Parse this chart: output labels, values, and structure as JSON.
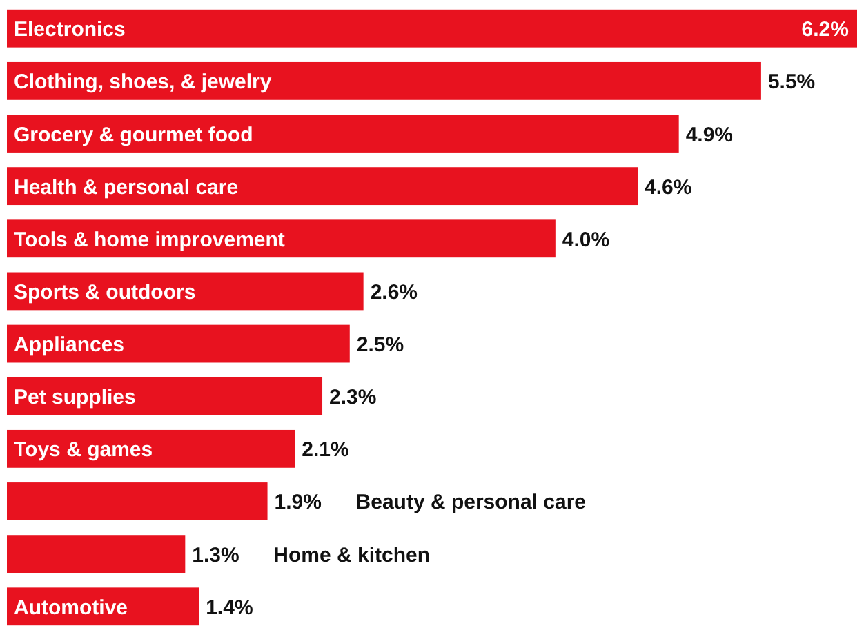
{
  "chart_data": {
    "type": "bar",
    "orientation": "horizontal",
    "categories": [
      "Electronics",
      "Clothing, shoes, & jewelry",
      "Grocery & gourmet food",
      "Health & personal care",
      "Tools & home improvement",
      "Sports & outdoors",
      "Appliances",
      "Pet supplies",
      "Toys & games",
      "Beauty & personal care",
      "Home & kitchen",
      "Automotive"
    ],
    "values": [
      6.2,
      5.5,
      4.9,
      4.6,
      4.0,
      2.6,
      2.5,
      2.3,
      2.1,
      1.9,
      1.3,
      1.4
    ],
    "value_labels": [
      "6.2%",
      "5.5%",
      "4.9%",
      "4.6%",
      "4.0%",
      "2.6%",
      "2.5%",
      "2.3%",
      "2.1%",
      "1.9%",
      "1.3%",
      "1.4%"
    ],
    "color": "#e8121f"
  }
}
